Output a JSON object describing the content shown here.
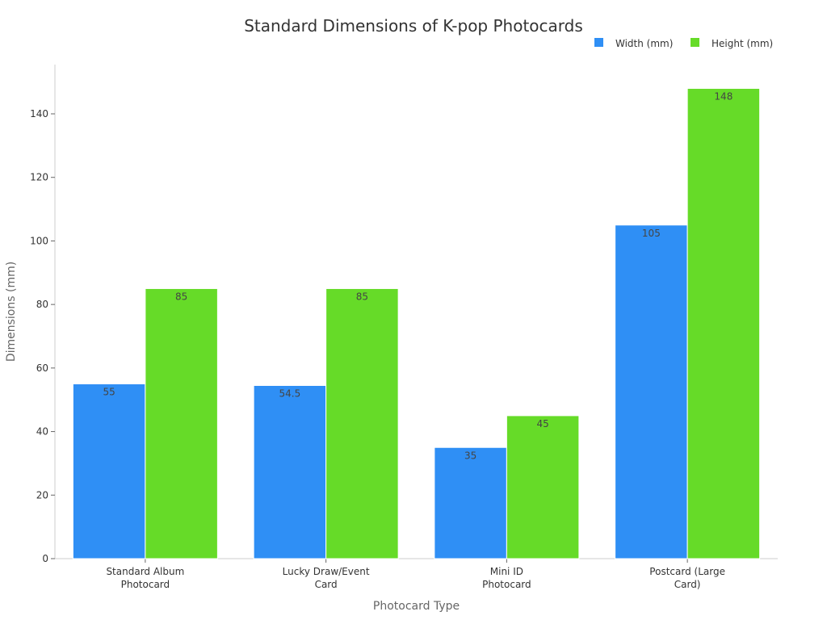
{
  "chart_data": {
    "type": "bar",
    "title": "Standard Dimensions of K-pop Photocards",
    "xlabel": "Photocard Type",
    "ylabel": "Dimensions (mm)",
    "categories": [
      [
        "Standard Album",
        "Photocard"
      ],
      [
        "Lucky Draw/Event",
        "Card"
      ],
      [
        "Mini ID",
        "Photocard"
      ],
      [
        "Postcard (Large",
        "Card)"
      ]
    ],
    "series": [
      {
        "name": "Width (mm)",
        "color": "#2f8ff5",
        "values": [
          55,
          54.5,
          35,
          105
        ]
      },
      {
        "name": "Height (mm)",
        "color": "#66db28",
        "values": [
          85,
          85,
          45,
          148
        ]
      }
    ],
    "ylim": [
      0,
      155
    ],
    "yticks": [
      0,
      20,
      40,
      60,
      80,
      100,
      120,
      140
    ],
    "grid": false,
    "legend": "top-right",
    "data_labels": true
  }
}
